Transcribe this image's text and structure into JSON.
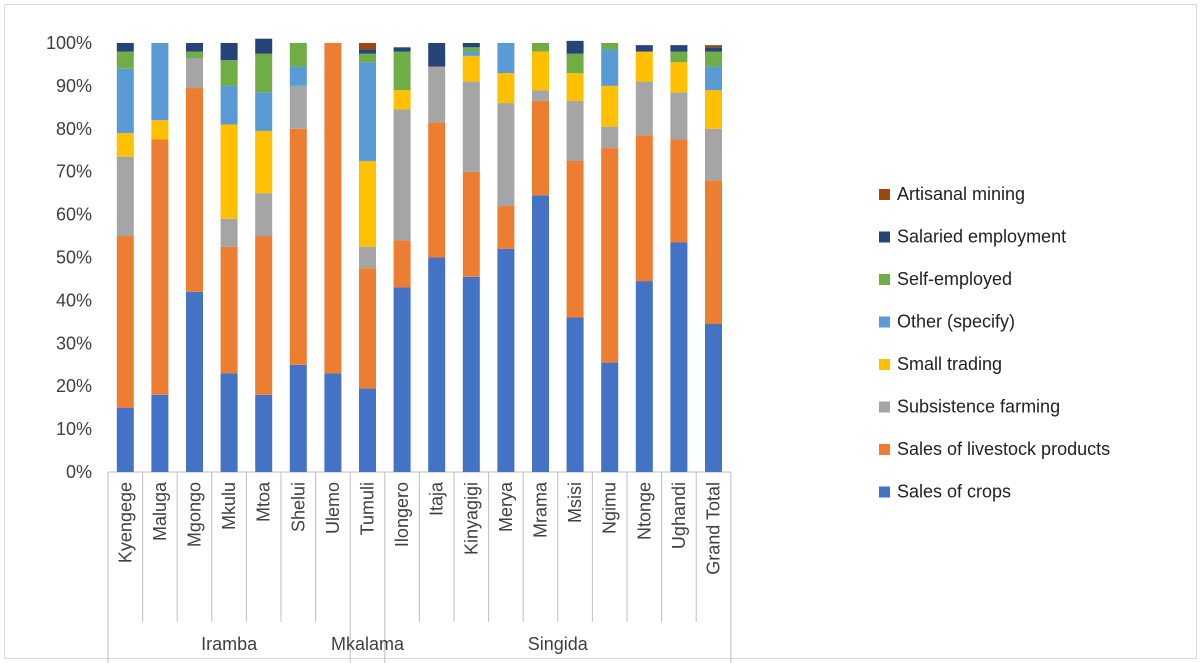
{
  "chart_data": {
    "type": "bar",
    "stacked": "percent",
    "title": "",
    "xlabel": "",
    "ylabel": "",
    "ylim": [
      0,
      100
    ],
    "y_ticks": [
      "0%",
      "10%",
      "20%",
      "30%",
      "40%",
      "50%",
      "60%",
      "70%",
      "80%",
      "90%",
      "100%"
    ],
    "grid": false,
    "legend_position": "right",
    "categories": [
      "Kyengege",
      "Maluga",
      "Mgongo",
      "Mkulu",
      "Mtoa",
      "Shelui",
      "Ulemo",
      "Tumuli",
      "Ilongero",
      "Itaja",
      "Kinyagigi",
      "Merya",
      "Mrama",
      "Msisi",
      "Ngimu",
      "Ntonge",
      "Ughandi",
      "Grand Total"
    ],
    "groups": [
      {
        "name": "Iramba",
        "count": 7
      },
      {
        "name": "Mkalama",
        "count": 1
      },
      {
        "name": "Singida",
        "count": 10
      }
    ],
    "series": [
      {
        "name": "Sales of crops",
        "color": "#4472C4",
        "values": [
          15,
          18,
          42,
          23,
          18,
          25,
          23,
          19.5,
          43,
          50,
          45.5,
          52,
          64.5,
          36,
          25.5,
          44.5,
          53.5,
          34.5
        ]
      },
      {
        "name": "Sales of livestock products",
        "color": "#ED7D31",
        "values": [
          40,
          59.5,
          47.5,
          29.5,
          37,
          55,
          77,
          28,
          11,
          31.5,
          24.5,
          10,
          22,
          36.5,
          50,
          34,
          24,
          33.5
        ]
      },
      {
        "name": "Subsistence farming",
        "color": "#A5A5A5",
        "values": [
          18.5,
          0,
          7,
          6.5,
          10,
          10,
          0,
          5,
          30.5,
          13,
          21,
          24,
          2.5,
          14,
          5,
          12.5,
          11,
          12
        ]
      },
      {
        "name": "Small trading",
        "color": "#FFC000",
        "values": [
          5.5,
          4.5,
          0,
          22,
          14.5,
          0,
          0,
          20,
          4.5,
          0,
          6,
          7,
          9,
          6.5,
          9.5,
          7,
          7,
          9
        ]
      },
      {
        "name": "Other (specify)",
        "color": "#5B9BD5",
        "values": [
          15,
          18,
          0,
          9,
          9,
          4.5,
          0,
          23,
          0,
          0,
          1,
          7,
          0,
          0,
          8.5,
          0,
          0,
          5.5
        ]
      },
      {
        "name": "Self-employed",
        "color": "#70AD47",
        "values": [
          4,
          0,
          1.5,
          6,
          9,
          5.5,
          0,
          2,
          9,
          0,
          1,
          0,
          2,
          4.5,
          1.5,
          0,
          2.5,
          3.5
        ]
      },
      {
        "name": "Salaried employment",
        "color": "#264478",
        "values": [
          2,
          0,
          2,
          4,
          3.5,
          0,
          0,
          1,
          1,
          5.5,
          1,
          0,
          0,
          3,
          0,
          1.5,
          1.5,
          1
        ]
      },
      {
        "name": "Artisanal mining",
        "color": "#9E480E",
        "values": [
          0,
          0,
          0,
          0,
          0,
          0,
          0,
          1.5,
          0,
          0,
          0,
          0,
          0,
          0,
          0,
          0,
          0,
          0.5
        ]
      }
    ]
  }
}
